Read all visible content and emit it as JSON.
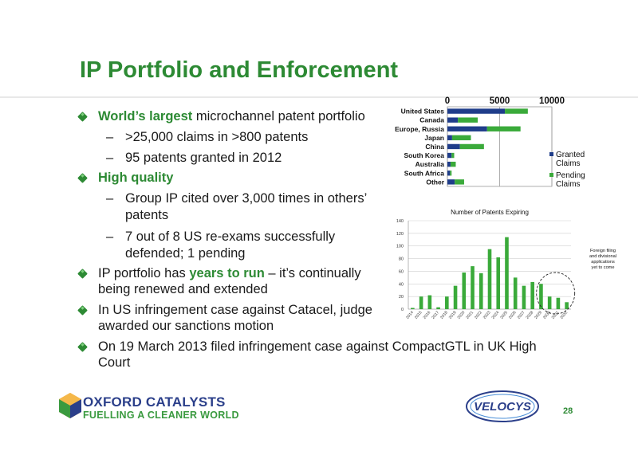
{
  "slide": {
    "title": "IP Portfolio and Enforcement",
    "page_number": "28",
    "bullets": {
      "b1_bold": "World’s largest",
      "b1_rest": " microchannel patent portfolio",
      "b1_sub1": ">25,000 claims in >800 patents",
      "b1_sub2": "95 patents granted in 2012",
      "b2_bold": "High quality",
      "b2_sub1_l1": "Group IP cited over 3,000 times in others’",
      "b2_sub1_l2": "patents",
      "b2_sub2_l1": "7 out of 8 US re-exams successfully",
      "b2_sub2_l2": "defended; 1 pending",
      "b3_pre": "IP portfolio has ",
      "b3_bold": "years to run",
      "b3_post": " – it’s continually",
      "b3_l2": "being renewed and extended",
      "b4_l1": "In US infringement case against Catacel, judge",
      "b4_l2": "awarded our sanctions motion",
      "b5_l1": "On 19 March 2013 filed infringement case against CompactGTL in UK High",
      "b5_l2": "Court"
    },
    "dash": "–"
  },
  "logos": {
    "oxford_name": "OXFORD CATALYSTS",
    "oxford_tagline": "FUELLING A CLEANER WORLD",
    "velocys": "VELOCYS"
  },
  "colors": {
    "brand_green": "#2d8a34",
    "granted_blue": "#1f3d8a",
    "pending_green": "#3aaa3a",
    "oxford_blue": "#2b3f8a"
  },
  "chart_data": [
    {
      "type": "bar",
      "orientation": "horizontal",
      "stacked": true,
      "categories": [
        "United States",
        "Canada",
        "Europe, Russia",
        "Japan",
        "China",
        "South Korea",
        "Australia",
        "South Africa",
        "Other"
      ],
      "series": [
        {
          "name": "Granted Claims",
          "values": [
            5500,
            1000,
            3800,
            450,
            1200,
            400,
            300,
            250,
            700
          ]
        },
        {
          "name": "Pending Claims",
          "values": [
            2200,
            1900,
            3200,
            1800,
            2300,
            250,
            500,
            150,
            900
          ]
        }
      ],
      "xticks": [
        "0",
        "5000",
        "10000"
      ],
      "xlim": [
        0,
        10000
      ],
      "legend": "right",
      "grid": true
    },
    {
      "type": "bar",
      "title": "Number of Patents Expiring",
      "categories": [
        "2014",
        "2015",
        "2016",
        "2017",
        "2018",
        "2019",
        "2020",
        "2021",
        "2022",
        "2023",
        "2024",
        "2025",
        "2026",
        "2027",
        "2028",
        "2029",
        "2030",
        "2031",
        "2032"
      ],
      "x_tick_labels": [
        "2014",
        "2015",
        "2016",
        "2017",
        "2018",
        "2019",
        "2020",
        "2021",
        "2022",
        "2023",
        "2024",
        "2025",
        "2026",
        "2027",
        "2028",
        "2029",
        "2030",
        "2031",
        "2032"
      ],
      "values": [
        2,
        20,
        22,
        3,
        20,
        37,
        58,
        68,
        57,
        95,
        82,
        114,
        50,
        37,
        43,
        40,
        20,
        18,
        11
      ],
      "yticks": [
        "0",
        "20",
        "40",
        "60",
        "80",
        "100",
        "120",
        "140"
      ],
      "ylim": [
        0,
        140
      ],
      "annotation": {
        "l1": "Foreign filing",
        "l2": "and divisional",
        "l3": "applications",
        "l4": "yet to come"
      }
    }
  ]
}
